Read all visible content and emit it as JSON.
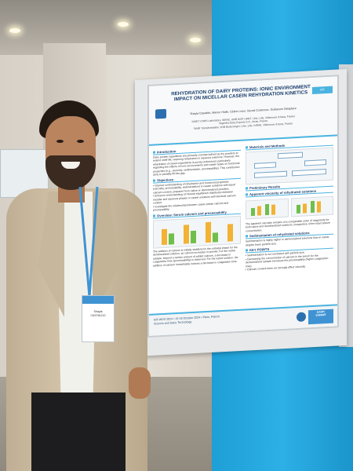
{
  "photo": {
    "subject": "presenter standing beside a scientific poster",
    "colors": {
      "blue_wall": "#2cb0e6",
      "jacket": "#c9b89c",
      "poster_accent": "#4bb3e0"
    }
  },
  "poster": {
    "title": "REHYDRATION OF DAIRY PROTEINS: IONIC ENVIRONMENT IMPACT ON MICELLAR CASEIN REHYDRATION KINETICS",
    "authors": "Shayla Castaldo, Manon Hiolle, Céline Lesur, Benoit Cudennec, Guillaume Delaplace",
    "affiliations": "¹UMET CNRS Laboratory, INRAE, UMR 8207 UMET, Univ. Lille, Villeneuve d'Ascq, France\n²Ingredia Dairy Experts S.A., Arras, France\n³UMR Transfrontalière 1158 BioEcoAgro, Univ. Lille, INRAE, Villeneuve d'Ascq, France",
    "sections": {
      "introduction_head": "Introduction",
      "introduction_text": "Dairy protein ingredients are primarily commercialized as dry powders to extend shelf life, requiring rehydration in aqueous solutions. However, the rehydration of casein ingredients is poorly understood, particularly regarding the effects of ionic environments and casein types on functional properties (e.g., viscosity, sedimentation, processability). This contribution aims to partially fill this gap.",
      "objectives_head": "Objectives",
      "objectives_text": "• Improve understanding of rehydration and functional properties (viscosity, processability, sedimentation) in casein solutions with equal calcium content, prepared from native or demineralized powders.\n• Enhance understanding of mineral equilibrium distribution between micellar and aqueous phases in casein solutions with identical calcium content.\n• Investigate the relationship between casein phase calcium and processability.",
      "overview_head": "Overview: Serum calcium and processability",
      "overview_text": "The addition of calcium is initially stabilized in the colloidal phase for the demineralized solution, as calcium increases in powder. For the native sample, beyond a certain amount of added calcium, a decrease in coagulation time (processability) is observed. For the native solution, the addition of calcium immediately induces a decrease in coagulation time.",
      "methods_head": "Materials and Methods",
      "prelim_head": "Preliminary Results",
      "viscosity_head": "Apparent viscosity of rehydrated solutions",
      "viscosity_text": "The apparent viscosity remains of a comparable order of magnitude for both native and demineralized solutions, irrespective of the total calcium concentration.",
      "sedimentation_head": "Sedimentation of rehydrated solutions",
      "sedimentation_text": "Sedimentation is highly higher in demineralized solutions than in native, despite lower particle size.",
      "keypoints_head": "KEY POINTS",
      "keypoints_text": "• Sedimentation is not correlated with particle size.\n• Decreasing the concentration of calcium in the serum for the demineralized sample increases the processability (higher coagulation time).\n• Calcium content does not strongly affect viscosity."
    },
    "footer_text": "IDF WDS 2024 • 15-18 October 2024 • Paris, France\nScience and Dairy Technology",
    "tag": "IDF",
    "logo_text": "DAIRY\nSUMMIT"
  },
  "badge": {
    "name_text": "Shayla\nCASTALDO"
  }
}
